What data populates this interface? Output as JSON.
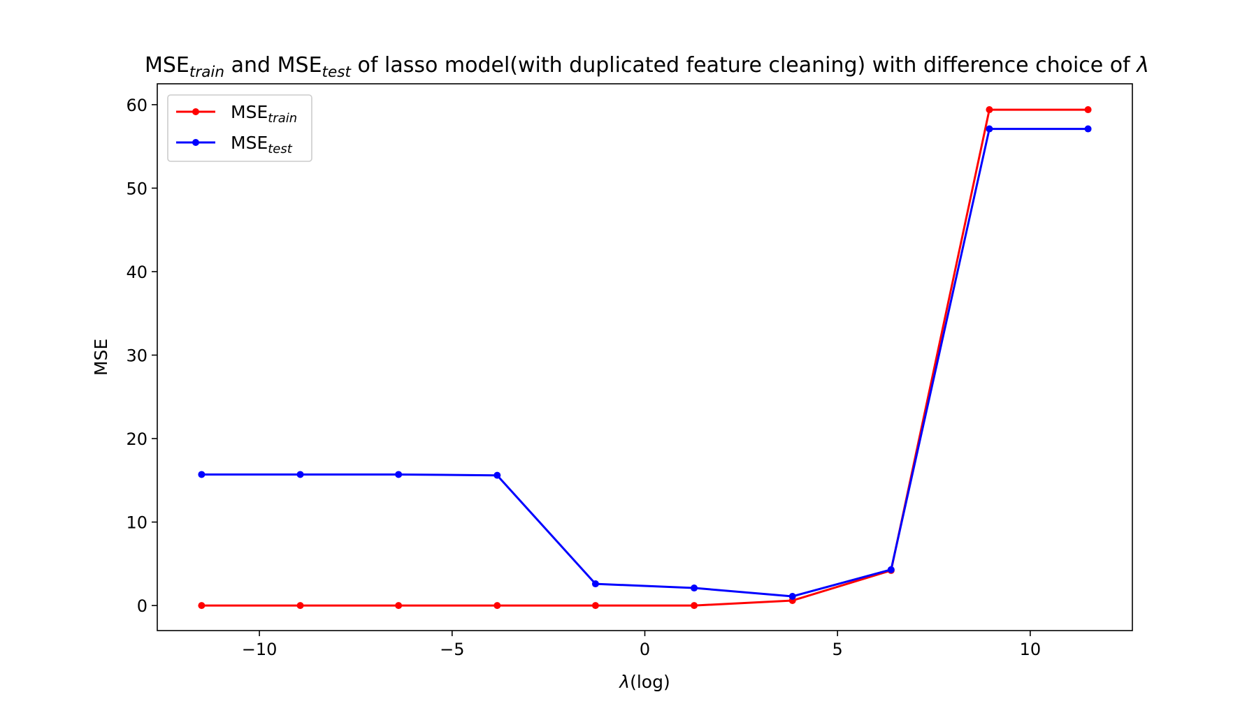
{
  "chart_data": {
    "type": "line",
    "title": {
      "parts": [
        {
          "text": "MSE",
          "style": "normal"
        },
        {
          "text": "train",
          "style": "sub"
        },
        {
          "text": " and MSE",
          "style": "normal"
        },
        {
          "text": "test",
          "style": "sub"
        },
        {
          "text": " of lasso model(with duplicated feature cleaning) with difference choice of ",
          "style": "normal"
        },
        {
          "text": "λ",
          "style": "italic"
        }
      ]
    },
    "xlabel": {
      "parts": [
        {
          "text": "λ",
          "style": "italic"
        },
        {
          "text": "(log)",
          "style": "normal"
        }
      ]
    },
    "ylabel": "MSE",
    "xlim": [
      -12.65,
      12.65
    ],
    "ylim": [
      -3.0,
      62.5
    ],
    "xticks": [
      -10,
      -5,
      0,
      5,
      10
    ],
    "xtick_labels": [
      "−10",
      "−5",
      "0",
      "5",
      "10"
    ],
    "yticks": [
      0,
      10,
      20,
      30,
      40,
      50,
      60
    ],
    "ytick_labels": [
      "0",
      "10",
      "20",
      "30",
      "40",
      "50",
      "60"
    ],
    "grid": false,
    "legend_position": "upper-left",
    "x": [
      -11.5,
      -8.94,
      -6.39,
      -3.83,
      -1.28,
      1.28,
      3.83,
      6.39,
      8.94,
      11.5
    ],
    "series": [
      {
        "name": {
          "base": "MSE",
          "sub": "train"
        },
        "color": "#ff0000",
        "values": [
          0.0,
          0.0,
          0.0,
          0.0,
          0.0,
          0.0,
          0.6,
          4.2,
          59.4,
          59.4
        ]
      },
      {
        "name": {
          "base": "MSE",
          "sub": "test"
        },
        "color": "#0000ff",
        "values": [
          15.7,
          15.7,
          15.7,
          15.6,
          2.6,
          2.1,
          1.1,
          4.3,
          57.1,
          57.1
        ]
      }
    ]
  }
}
